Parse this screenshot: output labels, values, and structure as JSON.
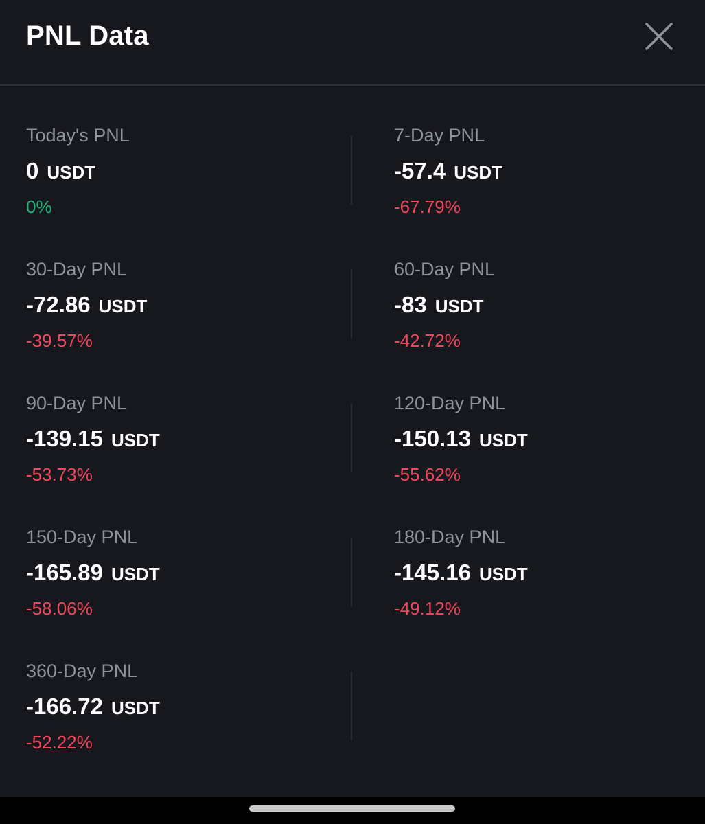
{
  "header": {
    "title": "PNL Data",
    "close_icon": "close-icon"
  },
  "colors": {
    "positive": "#21b679",
    "negative": "#f0455a",
    "label": "#8e929c",
    "value": "#ffffff",
    "background": "#17181d",
    "divider": "#2b2e36"
  },
  "items": [
    {
      "label": "Today's PNL",
      "value": "0",
      "unit": "USDT",
      "percent": "0%",
      "trend": "positive"
    },
    {
      "label": "7-Day PNL",
      "value": "-57.4",
      "unit": "USDT",
      "percent": "-67.79%",
      "trend": "negative"
    },
    {
      "label": "30-Day PNL",
      "value": "-72.86",
      "unit": "USDT",
      "percent": "-39.57%",
      "trend": "negative"
    },
    {
      "label": "60-Day PNL",
      "value": "-83",
      "unit": "USDT",
      "percent": "-42.72%",
      "trend": "negative"
    },
    {
      "label": "90-Day PNL",
      "value": "-139.15",
      "unit": "USDT",
      "percent": "-53.73%",
      "trend": "negative"
    },
    {
      "label": "120-Day PNL",
      "value": "-150.13",
      "unit": "USDT",
      "percent": "-55.62%",
      "trend": "negative"
    },
    {
      "label": "150-Day PNL",
      "value": "-165.89",
      "unit": "USDT",
      "percent": "-58.06%",
      "trend": "negative"
    },
    {
      "label": "180-Day PNL",
      "value": "-145.16",
      "unit": "USDT",
      "percent": "-49.12%",
      "trend": "negative"
    },
    {
      "label": "360-Day PNL",
      "value": "-166.72",
      "unit": "USDT",
      "percent": "-52.22%",
      "trend": "negative"
    }
  ]
}
